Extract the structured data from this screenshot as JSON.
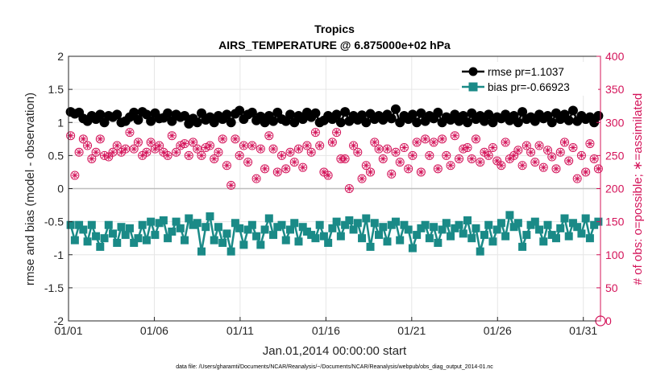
{
  "chart_data": {
    "type": "line",
    "title_line1": "Tropics",
    "title_line2": "AIRS_TEMPERATURE @ 6.875000e+02 hPa",
    "xlabel": "Jan.01,2014 00:00:00 start",
    "ylabel_left": "rmse and bias (model - observation)",
    "ylabel_right": "# of obs: o=possible; ∗=assimilated",
    "footer": "data file: /Users/gharamti/Documents/NCAR/Reanalysis/~/Documents/NCAR/Reanalysis/webpub/obs_diag_output_2014-01.nc",
    "x_range": [
      1,
      32
    ],
    "ylim_left": [
      -2,
      2
    ],
    "ylim_right": [
      0,
      400
    ],
    "x_ticks": [
      {
        "x": 1,
        "label": "01/01"
      },
      {
        "x": 6,
        "label": "01/06"
      },
      {
        "x": 11,
        "label": "01/11"
      },
      {
        "x": 16,
        "label": "01/16"
      },
      {
        "x": 21,
        "label": "01/21"
      },
      {
        "x": 26,
        "label": "01/26"
      },
      {
        "x": 31,
        "label": "01/31"
      }
    ],
    "y_ticks_left": [
      {
        "v": -2,
        "label": "-2"
      },
      {
        "v": -1.5,
        "label": "-1.5"
      },
      {
        "v": -1,
        "label": "-1"
      },
      {
        "v": -0.5,
        "label": "-0.5"
      },
      {
        "v": 0,
        "label": "0"
      },
      {
        "v": 0.5,
        "label": "0.5"
      },
      {
        "v": 1,
        "label": "1"
      },
      {
        "v": 1.5,
        "label": "1.5"
      },
      {
        "v": 2,
        "label": "2"
      }
    ],
    "y_ticks_right": [
      {
        "v": 0,
        "label": "0"
      },
      {
        "v": 50,
        "label": "50"
      },
      {
        "v": 100,
        "label": "100"
      },
      {
        "v": 150,
        "label": "150"
      },
      {
        "v": 200,
        "label": "200"
      },
      {
        "v": 250,
        "label": "250"
      },
      {
        "v": 300,
        "label": "300"
      },
      {
        "v": 350,
        "label": "350"
      },
      {
        "v": 400,
        "label": "400"
      }
    ],
    "legend": {
      "placement": "top-right",
      "entries": [
        {
          "series": "rmse",
          "label": "rmse pr=1.1037"
        },
        {
          "series": "bias",
          "label": "bias pr=-0.66923"
        }
      ]
    },
    "series": [
      {
        "name": "rmse",
        "color": "#000000",
        "marker": "circle",
        "axis": "left",
        "values": [
          1.16,
          1.13,
          1.15,
          1.06,
          1.02,
          1.1,
          1.05,
          1.12,
          1.0,
          1.1,
          1.08,
          1.12,
          1.0,
          1.02,
          1.08,
          1.15,
          1.04,
          1.16,
          1.12,
          1.02,
          1.14,
          1.06,
          1.07,
          1.14,
          1.02,
          1.12,
          1.08,
          1.1,
          0.98,
          1.06,
          1.0,
          1.14,
          1.04,
          1.08,
          1.0,
          1.1,
          1.05,
          1.12,
          1.0,
          1.13,
          1.18,
          1.05,
          1.12,
          1.15,
          1.03,
          1.09,
          1.0,
          1.1,
          1.02,
          1.15,
          1.05,
          1.02,
          1.12,
          1.0,
          1.1,
          1.05,
          1.15,
          1.08,
          1.14,
          1.0,
          1.03,
          1.1,
          1.05,
          1.12,
          1.0,
          1.16,
          1.02,
          1.1,
          1.04,
          1.11,
          1.0,
          1.13,
          1.05,
          1.1,
          1.04,
          1.12,
          1.06,
          1.2,
          1.0,
          1.1,
          1.05,
          1.12,
          1.0,
          1.14,
          1.02,
          1.1,
          1.06,
          1.15,
          1.0,
          1.08,
          1.04,
          1.12,
          1.02,
          1.1,
          1.0,
          1.14,
          1.05,
          1.1,
          1.02,
          1.12,
          1.0,
          1.08,
          1.06,
          1.12,
          1.03,
          1.1,
          1.0,
          1.16,
          1.05,
          1.08,
          1.02,
          1.12,
          1.06,
          1.1,
          1.0,
          1.14,
          1.05,
          1.12,
          1.03,
          1.18,
          1.02,
          1.1,
          1.05,
          1.08,
          1.0,
          1.1
        ]
      },
      {
        "name": "bias",
        "color": "#1a8a87",
        "marker": "square",
        "axis": "left",
        "values": [
          -0.55,
          -0.78,
          -0.55,
          -0.62,
          -0.8,
          -0.55,
          -0.72,
          -0.88,
          -0.75,
          -0.55,
          -0.68,
          -0.82,
          -0.58,
          -0.7,
          -0.6,
          -0.82,
          -0.75,
          -0.55,
          -0.78,
          -0.5,
          -0.7,
          -0.52,
          -0.48,
          -0.75,
          -0.65,
          -0.5,
          -0.6,
          -0.78,
          -0.45,
          -0.55,
          -0.52,
          -0.95,
          -0.58,
          -0.42,
          -0.78,
          -0.58,
          -0.82,
          -0.68,
          -0.95,
          -0.52,
          -0.6,
          -0.85,
          -0.62,
          -0.55,
          -0.72,
          -0.85,
          -0.62,
          -0.45,
          -0.7,
          -0.58,
          -0.55,
          -0.78,
          -0.62,
          -0.52,
          -0.8,
          -0.58,
          -0.65,
          -0.7,
          -0.75,
          -0.55,
          -0.72,
          -0.82,
          -0.6,
          -0.5,
          -0.72,
          -0.55,
          -0.48,
          -0.62,
          -0.52,
          -0.75,
          -0.45,
          -0.88,
          -0.52,
          -0.7,
          -0.58,
          -0.8,
          -0.55,
          -0.5,
          -0.78,
          -0.55,
          -0.62,
          -0.9,
          -0.7,
          -0.6,
          -0.55,
          -0.75,
          -0.58,
          -0.82,
          -0.62,
          -0.52,
          -0.72,
          -0.6,
          -0.55,
          -0.68,
          -0.48,
          -0.75,
          -0.6,
          -0.95,
          -0.7,
          -0.55,
          -0.8,
          -0.62,
          -0.52,
          -0.72,
          -0.4,
          -0.58,
          -0.52,
          -0.88,
          -0.7,
          -0.55,
          -0.5,
          -0.62,
          -0.8,
          -0.55,
          -0.7,
          -0.75,
          -0.6,
          -0.45,
          -0.72,
          -0.52,
          -0.58,
          -0.68,
          -0.45,
          -0.75,
          -0.55,
          -0.5
        ]
      },
      {
        "name": "obs possible",
        "color": "#d4145a",
        "marker": "circle-open",
        "axis": "right",
        "values": [
          280,
          220,
          255,
          275,
          265,
          245,
          255,
          275,
          250,
          248,
          255,
          265,
          255,
          260,
          285,
          260,
          270,
          250,
          255,
          270,
          260,
          265,
          255,
          250,
          280,
          255,
          265,
          268,
          250,
          270,
          260,
          250,
          262,
          265,
          245,
          255,
          275,
          235,
          205,
          275,
          250,
          265,
          240,
          265,
          215,
          260,
          230,
          280,
          260,
          225,
          250,
          230,
          255,
          240,
          260,
          232,
          265,
          255,
          285,
          265,
          225,
          220,
          270,
          285,
          245,
          245,
          200,
          265,
          255,
          215,
          235,
          225,
          270,
          260,
          245,
          260,
          222,
          255,
          240,
          262,
          230,
          250,
          270,
          225,
          275,
          250,
          270,
          230,
          275,
          250,
          235,
          280,
          245,
          260,
          262,
          245,
          275,
          240,
          255,
          250,
          262,
          242,
          235,
          270,
          245,
          250,
          258,
          235,
          265,
          255,
          240,
          265,
          232,
          258,
          248,
          230,
          255,
          270,
          242,
          262,
          215,
          250,
          225,
          268,
          245,
          230
        ]
      },
      {
        "name": "obs assimilated",
        "color": "#d4145a",
        "marker": "asterisk",
        "axis": "right",
        "values": [
          280,
          220,
          255,
          275,
          265,
          245,
          255,
          275,
          250,
          248,
          255,
          265,
          255,
          260,
          285,
          260,
          270,
          250,
          255,
          270,
          260,
          265,
          255,
          250,
          280,
          255,
          265,
          268,
          250,
          270,
          260,
          250,
          262,
          265,
          245,
          255,
          275,
          235,
          205,
          275,
          250,
          265,
          240,
          265,
          215,
          260,
          230,
          280,
          260,
          225,
          250,
          230,
          255,
          240,
          260,
          232,
          265,
          255,
          285,
          265,
          225,
          220,
          270,
          285,
          245,
          245,
          200,
          265,
          255,
          215,
          235,
          225,
          270,
          260,
          245,
          260,
          222,
          255,
          240,
          262,
          230,
          250,
          270,
          225,
          275,
          250,
          270,
          230,
          275,
          250,
          235,
          280,
          245,
          260,
          262,
          245,
          275,
          240,
          255,
          250,
          262,
          242,
          235,
          270,
          245,
          250,
          258,
          235,
          265,
          255,
          240,
          265,
          232,
          258,
          248,
          230,
          255,
          270,
          242,
          262,
          215,
          250,
          225,
          268,
          245,
          230
        ]
      }
    ],
    "extra_points": [
      {
        "series": "obs possible",
        "x": 32,
        "v": 0
      }
    ],
    "zero_line": {
      "v": 0,
      "color": "#bdbdbd"
    }
  }
}
